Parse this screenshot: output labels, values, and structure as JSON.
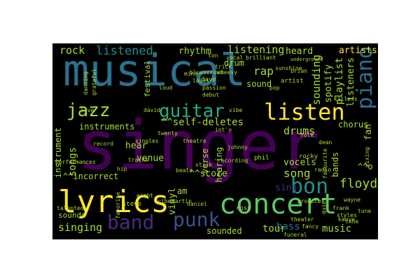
{
  "palette": {
    "background": "#000000",
    "page": "#ffffff",
    "colors": [
      "#440154",
      "#472c7a",
      "#3b518b",
      "#2c718e",
      "#21908d",
      "#27ad81",
      "#5cc863",
      "#aadc32",
      "#fde725"
    ]
  },
  "words": {
    "musical": "musical",
    "singer": "singer",
    "concert": "concert",
    "lyrics": "lyrics",
    "jazz": "jazz",
    "guitar": "guitar",
    "listen": "listen",
    "piano": "piano",
    "band": "band",
    "punk": "punk",
    "bon": "bon",
    "song": "song",
    "floyd": "floyd",
    "listened": "listened",
    "listening": "listening",
    "rock": "rock",
    "rhythm": "rhythm",
    "rap": "rap",
    "drum": "drum",
    "heard": "heard",
    "artists": "artists",
    "sounding": "sounding",
    "spotify": "spotify",
    "playlist": "playlist",
    "listeners": "listeners",
    "instruments": "instruments",
    "self_deletes": "^^self-deletes",
    "drums": "drums",
    "chorus": "chorus",
    "songs": "songs",
    "instrument": "instrument",
    "incorrect": "^^incorrect",
    "score": "^^score",
    "bands": "bands",
    "vocels": "vocels",
    "sing": "sing",
    "venue": "venue",
    "hear": "hear",
    "hearing": "hearing",
    "verse": "verse",
    "singing": "singing",
    "sounds": "sounds",
    "sounded": "sounded",
    "tour": "tour",
    "bass": "bass",
    "music": "music",
    "vinyl": "vinyl",
    "sound": "sound",
    "festival": "festival",
    "caret_o": "^^o",
    "fan": "fan",
    "am": "am",
    "ross": "ross",
    "rocky": "rocky",
    "phil": "phil",
    "brian": "brian",
    "dave": "dave",
    "daniel": "daniel",
    "steve": "steve",
    "david": "david",
    "bluescrowd": "bluescrowd",
    "sunshine": "sunshine",
    "passion": "passion",
    "vibe": "vibe",
    "tracks": "tracks",
    "beats": "beats",
    "radio": "radio",
    "theatre": "theatre",
    "theater": "theater",
    "record": "record",
    "recording": "recording",
    "favourite": "favourite",
    "performances": "performances",
    "talented": "talented",
    "artist": "artist",
    "vocal": "vocal",
    "brilliant": "brilliant",
    "trick": "trick",
    "cheesy": "cheesy",
    "debut": "debut",
    "loud": "loud",
    "singles": "singles",
    "twenty": "twenty",
    "frank": "frank",
    "styles": "styles",
    "tone": "tone",
    "quiet": "quiet",
    "wayne": "wayne",
    "johnny": "johnny",
    "dancing": "dancing",
    "grateful": "grateful",
    "folk": "folk",
    "live": "live",
    "pop": "pop",
    "killers": "killers",
    "mixing": "mixing",
    "stick": "stick",
    "hip": "hip",
    "vibes": "vibes",
    "martin": "martin",
    "mind": "mind",
    "intro": "int'o",
    "kanye": "kanye",
    "louis": "louis",
    "ton": "ton",
    "fancy": "fancy",
    "dean": "dean",
    "tune": "tune",
    "eight": "eight",
    "favorite": "favorite",
    "funeral": "funeral",
    "producer": "producer",
    "underground": "underground"
  }
}
